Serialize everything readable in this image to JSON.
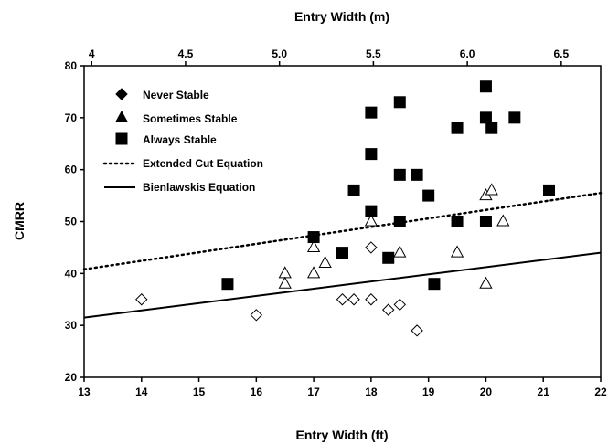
{
  "chart_data": {
    "type": "scatter",
    "xlabel": "Entry Width (ft)",
    "x2label": "Entry Width (m)",
    "ylabel": "CMRR",
    "xlim": [
      13,
      22
    ],
    "ylim": [
      20,
      80
    ],
    "x2lim": [
      3.96,
      6.71
    ],
    "x_ticks": [
      "13",
      "14",
      "15",
      "16",
      "17",
      "18",
      "19",
      "20",
      "21",
      "22"
    ],
    "y_ticks": [
      "20",
      "30",
      "40",
      "50",
      "60",
      "70",
      "80"
    ],
    "x2_ticks": [
      {
        "label": "4",
        "value": 4.0
      },
      {
        "label": "4.5",
        "value": 4.5
      },
      {
        "label": "5.0",
        "value": 5.0
      },
      {
        "label": "5.5",
        "value": 5.5
      },
      {
        "label": "6.0",
        "value": 6.0
      },
      {
        "label": "6.5",
        "value": 6.5
      }
    ],
    "grid": false,
    "legend_position": "top-left",
    "series": [
      {
        "name": "Never Stable",
        "marker": "diamond",
        "filled": false,
        "points": [
          [
            14,
            35
          ],
          [
            16,
            32
          ],
          [
            17.5,
            35
          ],
          [
            17.7,
            35
          ],
          [
            18,
            35
          ],
          [
            18,
            45
          ],
          [
            18.3,
            33
          ],
          [
            18.5,
            34
          ],
          [
            18.8,
            29
          ]
        ]
      },
      {
        "name": "Sometimes Stable",
        "marker": "triangle",
        "filled": false,
        "points": [
          [
            16.5,
            40
          ],
          [
            16.5,
            38
          ],
          [
            17,
            45
          ],
          [
            17,
            40
          ],
          [
            17.2,
            42
          ],
          [
            18,
            50
          ],
          [
            18.5,
            44
          ],
          [
            19.5,
            44
          ],
          [
            20,
            55
          ],
          [
            20.1,
            56
          ],
          [
            20.3,
            50
          ],
          [
            20,
            38
          ]
        ]
      },
      {
        "name": "Always Stable",
        "marker": "square",
        "filled": true,
        "points": [
          [
            15.5,
            38
          ],
          [
            17,
            47
          ],
          [
            17.5,
            44
          ],
          [
            17.7,
            56
          ],
          [
            18,
            71
          ],
          [
            18,
            63
          ],
          [
            18,
            52
          ],
          [
            18.3,
            43
          ],
          [
            18.5,
            73
          ],
          [
            18.5,
            59
          ],
          [
            18.5,
            50
          ],
          [
            18.8,
            59
          ],
          [
            19,
            55
          ],
          [
            19.1,
            38
          ],
          [
            19.5,
            68
          ],
          [
            19.5,
            50
          ],
          [
            20,
            76
          ],
          [
            20,
            70
          ],
          [
            20.1,
            68
          ],
          [
            20,
            50
          ],
          [
            20.5,
            70
          ],
          [
            21.1,
            56
          ]
        ]
      }
    ],
    "lines": [
      {
        "name": "Extended Cut Equation",
        "style": "dotted",
        "points": [
          [
            13,
            40.8
          ],
          [
            22,
            55.5
          ]
        ]
      },
      {
        "name": "Bienlawskis Equation",
        "style": "solid",
        "points": [
          [
            13,
            31.5
          ],
          [
            22,
            44
          ]
        ]
      }
    ]
  }
}
